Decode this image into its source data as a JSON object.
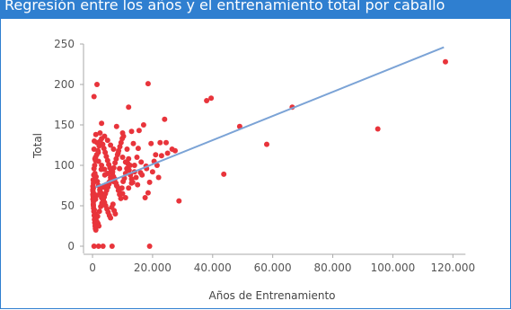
{
  "header": {
    "title": "Regresión entre los años y el entrenamiento total por caballo"
  },
  "colors": {
    "title_bar": "#2f7fd0",
    "points": "#e8343b",
    "trend_line": "#7ba3d6",
    "axis": "#aaaaaa"
  },
  "chart_data": {
    "type": "scatter",
    "title": "",
    "xlabel": "Años de Entrenamiento",
    "ylabel": "Total",
    "xlim": [
      -3000,
      122000
    ],
    "ylim": [
      -10,
      260
    ],
    "x_ticks": [
      0,
      20000,
      40000,
      60000,
      80000,
      100000,
      120000
    ],
    "x_tick_labels": [
      "0",
      "20.000",
      "40.000",
      "60.000",
      "80.000",
      "100.000",
      "120.000"
    ],
    "y_ticks": [
      0,
      50,
      100,
      150,
      200,
      250
    ],
    "y_tick_labels": [
      "0",
      "50",
      "100",
      "150",
      "200",
      "250"
    ],
    "grid": false,
    "trend_line": {
      "x": [
        1000,
        117000
      ],
      "y": [
        73,
        246
      ]
    },
    "points": [
      [
        1500,
        200
      ],
      [
        500,
        185
      ],
      [
        18500,
        201
      ],
      [
        38000,
        180
      ],
      [
        39500,
        183
      ],
      [
        12000,
        172
      ],
      [
        66500,
        172
      ],
      [
        49000,
        148
      ],
      [
        95000,
        145
      ],
      [
        58000,
        126
      ],
      [
        117500,
        228
      ],
      [
        43700,
        89
      ],
      [
        28800,
        56
      ],
      [
        19000,
        0
      ],
      [
        500,
        0
      ],
      [
        2000,
        0
      ],
      [
        3500,
        0
      ],
      [
        6500,
        0
      ],
      [
        3000,
        152
      ],
      [
        8000,
        148
      ],
      [
        10000,
        140
      ],
      [
        13000,
        142
      ],
      [
        17000,
        150
      ],
      [
        24000,
        157
      ],
      [
        15500,
        143
      ],
      [
        19500,
        127
      ],
      [
        24500,
        128
      ],
      [
        26500,
        120
      ],
      [
        27500,
        118
      ],
      [
        23000,
        112
      ],
      [
        20500,
        105
      ],
      [
        18000,
        96
      ],
      [
        16000,
        91
      ],
      [
        14000,
        100
      ],
      [
        12000,
        108
      ],
      [
        10000,
        110
      ],
      [
        8500,
        115
      ],
      [
        7000,
        120
      ],
      [
        6000,
        125
      ],
      [
        5000,
        131
      ],
      [
        4000,
        136
      ],
      [
        2500,
        140
      ],
      [
        1500,
        128
      ],
      [
        500,
        120
      ],
      [
        1000,
        110
      ],
      [
        2000,
        105
      ],
      [
        3000,
        100
      ],
      [
        4000,
        95
      ],
      [
        5000,
        90
      ],
      [
        6000,
        85
      ],
      [
        7000,
        80
      ],
      [
        8000,
        75
      ],
      [
        9000,
        70
      ],
      [
        10000,
        65
      ],
      [
        11000,
        60
      ],
      [
        12000,
        72
      ],
      [
        13000,
        78
      ],
      [
        14500,
        85
      ],
      [
        15000,
        76
      ],
      [
        16500,
        88
      ],
      [
        17500,
        60
      ],
      [
        18500,
        66
      ],
      [
        19000,
        79
      ],
      [
        20000,
        92
      ],
      [
        21500,
        100
      ],
      [
        22000,
        85
      ],
      [
        500,
        96
      ],
      [
        800,
        90
      ],
      [
        1200,
        86
      ],
      [
        1600,
        80
      ],
      [
        2000,
        75
      ],
      [
        2400,
        70
      ],
      [
        2800,
        66
      ],
      [
        3200,
        62
      ],
      [
        3600,
        58
      ],
      [
        4000,
        54
      ],
      [
        4400,
        50
      ],
      [
        4800,
        46
      ],
      [
        5200,
        42
      ],
      [
        5600,
        38
      ],
      [
        6000,
        35
      ],
      [
        6400,
        48
      ],
      [
        6800,
        52
      ],
      [
        7200,
        44
      ],
      [
        7600,
        40
      ],
      [
        300,
        78
      ],
      [
        300,
        72
      ],
      [
        300,
        66
      ],
      [
        300,
        60
      ],
      [
        300,
        55
      ],
      [
        300,
        50
      ],
      [
        600,
        45
      ],
      [
        900,
        40
      ],
      [
        1200,
        35
      ],
      [
        1500,
        30
      ],
      [
        1800,
        28
      ],
      [
        2100,
        25
      ],
      [
        200,
        82
      ],
      [
        400,
        88
      ],
      [
        700,
        100
      ],
      [
        1000,
        106
      ],
      [
        1400,
        113
      ],
      [
        1800,
        118
      ],
      [
        2200,
        124
      ],
      [
        2600,
        130
      ],
      [
        3000,
        133
      ],
      [
        3400,
        126
      ],
      [
        3800,
        121
      ],
      [
        4200,
        116
      ],
      [
        4600,
        111
      ],
      [
        5000,
        106
      ],
      [
        5400,
        101
      ],
      [
        5800,
        97
      ],
      [
        6200,
        93
      ],
      [
        6600,
        89
      ],
      [
        7000,
        86
      ],
      [
        7400,
        83
      ],
      [
        7800,
        78
      ],
      [
        8200,
        74
      ],
      [
        8600,
        69
      ],
      [
        9000,
        64
      ],
      [
        9400,
        59
      ],
      [
        9800,
        72
      ],
      [
        10200,
        80
      ],
      [
        10600,
        84
      ],
      [
        11000,
        90
      ],
      [
        11400,
        96
      ],
      [
        11800,
        102
      ],
      [
        12200,
        94
      ],
      [
        12600,
        88
      ],
      [
        13000,
        83
      ],
      [
        13400,
        79
      ],
      [
        100,
        70
      ],
      [
        100,
        64
      ],
      [
        100,
        74
      ],
      [
        150,
        68
      ],
      [
        150,
        58
      ],
      [
        200,
        62
      ],
      [
        250,
        52
      ],
      [
        350,
        47
      ],
      [
        450,
        43
      ],
      [
        550,
        38
      ],
      [
        650,
        33
      ],
      [
        750,
        29
      ],
      [
        850,
        25
      ],
      [
        950,
        22
      ],
      [
        1100,
        20
      ],
      [
        1300,
        31
      ],
      [
        1700,
        37
      ],
      [
        2300,
        43
      ],
      [
        2700,
        49
      ],
      [
        3100,
        53
      ],
      [
        3500,
        57
      ],
      [
        3900,
        61
      ],
      [
        4300,
        65
      ],
      [
        4700,
        69
      ],
      [
        5100,
        73
      ],
      [
        5500,
        77
      ],
      [
        5900,
        81
      ],
      [
        6300,
        85
      ],
      [
        6700,
        92
      ],
      [
        7100,
        97
      ],
      [
        7500,
        103
      ],
      [
        7900,
        108
      ],
      [
        8300,
        113
      ],
      [
        8700,
        118
      ],
      [
        9100,
        123
      ],
      [
        9500,
        128
      ],
      [
        9900,
        133
      ],
      [
        10300,
        136
      ],
      [
        14800,
        110
      ],
      [
        16200,
        104
      ],
      [
        17800,
        99
      ],
      [
        21000,
        113
      ],
      [
        22500,
        128
      ],
      [
        25000,
        115
      ],
      [
        11500,
        120
      ],
      [
        13600,
        127
      ],
      [
        15200,
        121
      ],
      [
        3000,
        60
      ],
      [
        1000,
        58
      ],
      [
        1500,
        63
      ],
      [
        2500,
        68
      ],
      [
        3500,
        73
      ],
      [
        4500,
        76
      ],
      [
        5500,
        79
      ],
      [
        800,
        108
      ],
      [
        1900,
        116
      ],
      [
        2900,
        95
      ],
      [
        4100,
        88
      ],
      [
        600,
        130
      ],
      [
        1100,
        138
      ],
      [
        9000,
        96
      ],
      [
        11000,
        104
      ],
      [
        12500,
        100
      ],
      [
        14000,
        92
      ]
    ]
  }
}
